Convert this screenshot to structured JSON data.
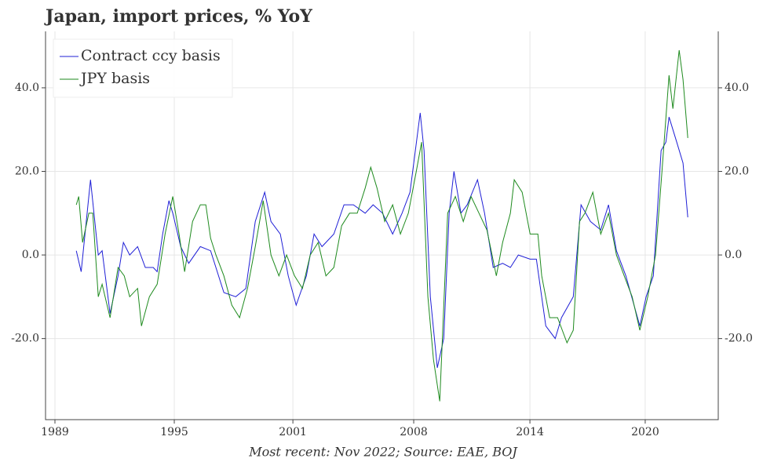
{
  "chart_data": {
    "type": "line",
    "title": "Japan, import prices, % YoY",
    "footnote": "Most recent: Nov 2022; Source: EAE, BOJ",
    "xlim": [
      1988.2,
      2024.67
    ],
    "ylim": [
      -39.4,
      53.5
    ],
    "xticks": [
      {
        "value": 1988.71,
        "label": "1989"
      },
      {
        "value": 1995.18,
        "label": "1995"
      },
      {
        "value": 2001.61,
        "label": "2001"
      },
      {
        "value": 2008.16,
        "label": "2008"
      },
      {
        "value": 2014.46,
        "label": "2014"
      },
      {
        "value": 2020.71,
        "label": "2020"
      }
    ],
    "yticks": [
      {
        "value": -20,
        "label": "-20.0"
      },
      {
        "value": 0,
        "label": "0.0"
      },
      {
        "value": 20,
        "label": "20.0"
      },
      {
        "value": 40,
        "label": "40.0"
      }
    ],
    "grid": true,
    "legend": "upper left",
    "series": [
      {
        "name": "Contract ccy basis",
        "color": "#1f1fd6",
        "x": [
          1989.87,
          1990.13,
          1990.64,
          1991.06,
          1991.27,
          1991.7,
          1992.13,
          1992.42,
          1992.76,
          1993.19,
          1993.61,
          1994.04,
          1994.25,
          1994.55,
          1994.89,
          1995.1,
          1995.53,
          1995.96,
          1996.59,
          1997.15,
          1997.87,
          1998.51,
          1999.06,
          1999.57,
          2000.08,
          2000.42,
          2000.93,
          2001.36,
          2001.79,
          2002.34,
          2002.76,
          2003.19,
          2003.83,
          2004.38,
          2004.89,
          2005.53,
          2005.96,
          2006.47,
          2007.02,
          2007.53,
          2007.96,
          2008.51,
          2008.72,
          2009.06,
          2009.44,
          2009.79,
          2010.08,
          2010.34,
          2010.72,
          2011.06,
          2011.62,
          2012.0,
          2012.47,
          2012.98,
          2013.4,
          2013.83,
          2014.47,
          2014.81,
          2015.32,
          2015.83,
          2016.17,
          2016.81,
          2017.23,
          2017.74,
          2018.3,
          2018.72,
          2019.15,
          2019.66,
          2020.42,
          2020.76,
          2021.15,
          2021.57,
          2021.83,
          2022.0,
          2022.42,
          2022.76,
          2023.02
        ],
        "values": [
          1,
          -4,
          18,
          0,
          1,
          -14,
          -5,
          3,
          0,
          2,
          -3,
          -3,
          -4,
          5,
          13,
          10,
          2,
          -2,
          2,
          1,
          -9,
          -10,
          -8,
          8,
          15,
          8,
          5,
          -5,
          -12,
          -5,
          5,
          2,
          5,
          12,
          12,
          10,
          12,
          10,
          5,
          10,
          15,
          34,
          25,
          -10,
          -27,
          -20,
          10,
          20,
          10,
          12,
          18,
          10,
          -3,
          -2,
          -3,
          0,
          -1,
          -1,
          -17,
          -20,
          -15,
          -10,
          12,
          8,
          6,
          12,
          1,
          -5,
          -17,
          -10,
          -5,
          25,
          27,
          33,
          27,
          22,
          9
        ]
      },
      {
        "name": "JPY basis",
        "color": "#1e8a1e",
        "x": [
          1989.87,
          1990.0,
          1990.21,
          1990.55,
          1990.76,
          1991.06,
          1991.27,
          1991.7,
          1992.13,
          1992.47,
          1992.76,
          1993.19,
          1993.4,
          1993.83,
          1994.25,
          1994.68,
          1995.1,
          1995.44,
          1995.74,
          1996.17,
          1996.59,
          1996.89,
          1997.15,
          1997.44,
          1997.87,
          1998.3,
          1998.72,
          1999.15,
          1999.57,
          2000.0,
          2000.42,
          2000.85,
          2001.27,
          2001.7,
          2002.13,
          2002.55,
          2002.98,
          2003.4,
          2003.83,
          2004.25,
          2004.68,
          2005.1,
          2005.53,
          2005.83,
          2006.17,
          2006.59,
          2007.02,
          2007.44,
          2007.87,
          2008.3,
          2008.59,
          2008.93,
          2009.23,
          2009.57,
          2010.0,
          2010.42,
          2010.85,
          2011.27,
          2011.7,
          2012.13,
          2012.64,
          2012.98,
          2013.4,
          2013.61,
          2014.04,
          2014.47,
          2014.89,
          2015.1,
          2015.53,
          2015.96,
          2016.47,
          2016.81,
          2017.15,
          2017.44,
          2017.87,
          2018.3,
          2018.72,
          2019.15,
          2019.57,
          2020.0,
          2020.42,
          2020.85,
          2021.27,
          2021.62,
          2022.0,
          2022.21,
          2022.55,
          2022.76,
          2023.02
        ],
        "values": [
          12,
          14,
          3,
          10,
          10,
          -10,
          -7,
          -15,
          -3,
          -5,
          -10,
          -8,
          -17,
          -10,
          -7,
          5,
          14,
          5,
          -4,
          8,
          12,
          12,
          4,
          0,
          -5,
          -12,
          -15,
          -8,
          2,
          13,
          0,
          -5,
          0,
          -5,
          -8,
          0,
          3,
          -5,
          -3,
          7,
          10,
          10,
          16,
          21,
          16,
          8,
          12,
          5,
          10,
          20,
          27,
          -10,
          -25,
          -35,
          10,
          14,
          8,
          14,
          10,
          6,
          -5,
          3,
          10,
          18,
          15,
          5,
          5,
          -5,
          -15,
          -15,
          -21,
          -18,
          8,
          10,
          15,
          5,
          10,
          0,
          -5,
          -10,
          -18,
          -10,
          0,
          20,
          43,
          35,
          49,
          42,
          28
        ]
      }
    ]
  }
}
